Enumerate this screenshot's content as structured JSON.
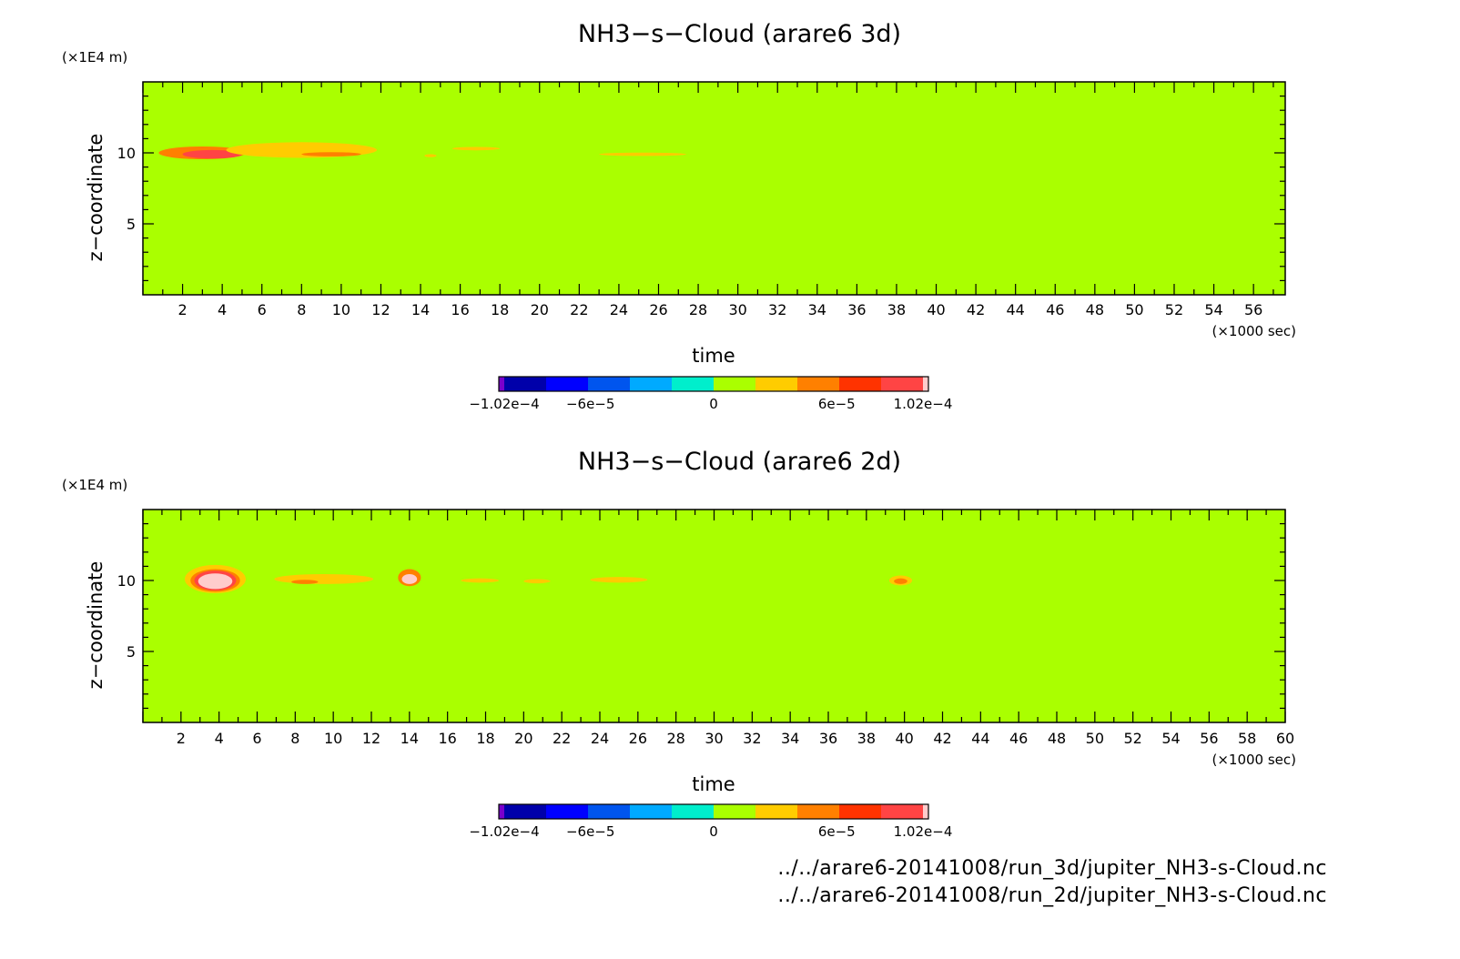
{
  "colors": {
    "background": "#aaff00",
    "colorbar": [
      "#7a00cc",
      "#0000aa",
      "#0000ff",
      "#0055ee",
      "#00aaff",
      "#00eecc",
      "#aaff00",
      "#ffcc00",
      "#ff8000",
      "#ff3300",
      "#ff4444",
      "#ffcccc"
    ]
  },
  "chart_data": [
    {
      "type": "heatmap",
      "title": "NH3−s−Cloud (arare6 3d)",
      "xlabel": "time",
      "x_unit": "(×1000 sec)",
      "ylabel": "z−coordinate",
      "y_unit": "(×1E4 m)",
      "xlim": [
        0,
        57.6
      ],
      "ylim": [
        0,
        15
      ],
      "xticks": [
        2,
        4,
        6,
        8,
        10,
        12,
        14,
        16,
        18,
        20,
        22,
        24,
        26,
        28,
        30,
        32,
        34,
        36,
        38,
        40,
        42,
        44,
        46,
        48,
        50,
        52,
        54,
        56
      ],
      "yticks": [
        5,
        10
      ],
      "grid": false,
      "cloud_features": [
        {
          "x_center": 3.0,
          "z_center": 10.0,
          "x_halfwidth": 2.2,
          "z_halfwidth": 0.45,
          "value": 6e-05
        },
        {
          "x_center": 3.5,
          "z_center": 9.9,
          "x_halfwidth": 1.5,
          "z_halfwidth": 0.3,
          "value": 9e-05
        },
        {
          "x_center": 8.0,
          "z_center": 10.2,
          "x_halfwidth": 3.8,
          "z_halfwidth": 0.55,
          "value": 3e-05
        },
        {
          "x_center": 9.5,
          "z_center": 9.9,
          "x_halfwidth": 1.5,
          "z_halfwidth": 0.15,
          "value": 6e-05
        },
        {
          "x_center": 16.8,
          "z_center": 10.3,
          "x_halfwidth": 1.2,
          "z_halfwidth": 0.12,
          "value": 3e-05
        },
        {
          "x_center": 14.5,
          "z_center": 9.8,
          "x_halfwidth": 0.3,
          "z_halfwidth": 0.1,
          "value": 3e-05
        },
        {
          "x_center": 25.2,
          "z_center": 9.9,
          "x_halfwidth": 2.2,
          "z_halfwidth": 0.12,
          "value": 3e-05
        }
      ]
    },
    {
      "type": "heatmap",
      "title": "NH3−s−Cloud (arare6 2d)",
      "xlabel": "time",
      "x_unit": "(×1000 sec)",
      "ylabel": "z−coordinate",
      "y_unit": "(×1E4 m)",
      "xlim": [
        0,
        60
      ],
      "ylim": [
        0,
        15
      ],
      "xticks": [
        2,
        4,
        6,
        8,
        10,
        12,
        14,
        16,
        18,
        20,
        22,
        24,
        26,
        28,
        30,
        32,
        34,
        36,
        38,
        40,
        42,
        44,
        46,
        48,
        50,
        52,
        54,
        56,
        58,
        60
      ],
      "yticks": [
        5,
        10
      ],
      "grid": false,
      "cloud_features": [
        {
          "x_center": 3.8,
          "z_center": 10.1,
          "x_halfwidth": 1.6,
          "z_halfwidth": 1.0,
          "value": 3e-05
        },
        {
          "x_center": 3.8,
          "z_center": 10.0,
          "x_halfwidth": 1.3,
          "z_halfwidth": 0.8,
          "value": 6e-05
        },
        {
          "x_center": 3.8,
          "z_center": 10.0,
          "x_halfwidth": 1.1,
          "z_halfwidth": 0.7,
          "value": 9e-05
        },
        {
          "x_center": 3.8,
          "z_center": 9.95,
          "x_halfwidth": 0.9,
          "z_halfwidth": 0.55,
          "value": 0.000102
        },
        {
          "x_center": 9.5,
          "z_center": 10.1,
          "x_halfwidth": 2.6,
          "z_halfwidth": 0.35,
          "value": 3e-05
        },
        {
          "x_center": 8.5,
          "z_center": 9.9,
          "x_halfwidth": 0.7,
          "z_halfwidth": 0.15,
          "value": 6e-05
        },
        {
          "x_center": 14.0,
          "z_center": 10.2,
          "x_halfwidth": 0.6,
          "z_halfwidth": 0.6,
          "value": 6e-05
        },
        {
          "x_center": 14.0,
          "z_center": 10.1,
          "x_halfwidth": 0.4,
          "z_halfwidth": 0.35,
          "value": 0.000102
        },
        {
          "x_center": 17.7,
          "z_center": 10.0,
          "x_halfwidth": 1.0,
          "z_halfwidth": 0.15,
          "value": 3e-05
        },
        {
          "x_center": 20.7,
          "z_center": 9.95,
          "x_halfwidth": 0.7,
          "z_halfwidth": 0.15,
          "value": 3e-05
        },
        {
          "x_center": 25.0,
          "z_center": 10.05,
          "x_halfwidth": 1.5,
          "z_halfwidth": 0.2,
          "value": 3e-05
        },
        {
          "x_center": 39.8,
          "z_center": 10.0,
          "x_halfwidth": 0.6,
          "z_halfwidth": 0.35,
          "value": 3e-05
        },
        {
          "x_center": 39.8,
          "z_center": 9.95,
          "x_halfwidth": 0.35,
          "z_halfwidth": 0.2,
          "value": 6e-05
        }
      ]
    }
  ],
  "colorbar": {
    "labels": [
      "−1.02e−4",
      "−6e−5",
      "0",
      "6e−5",
      "1.02e−4"
    ],
    "label_values": [
      -0.000102,
      -6e-05,
      0,
      6e-05,
      0.000102
    ],
    "range": [
      -0.000102,
      0.000102
    ]
  },
  "sources": [
    "../../arare6-20141008/run_3d/jupiter_NH3-s-Cloud.nc",
    "../../arare6-20141008/run_2d/jupiter_NH3-s-Cloud.nc"
  ]
}
